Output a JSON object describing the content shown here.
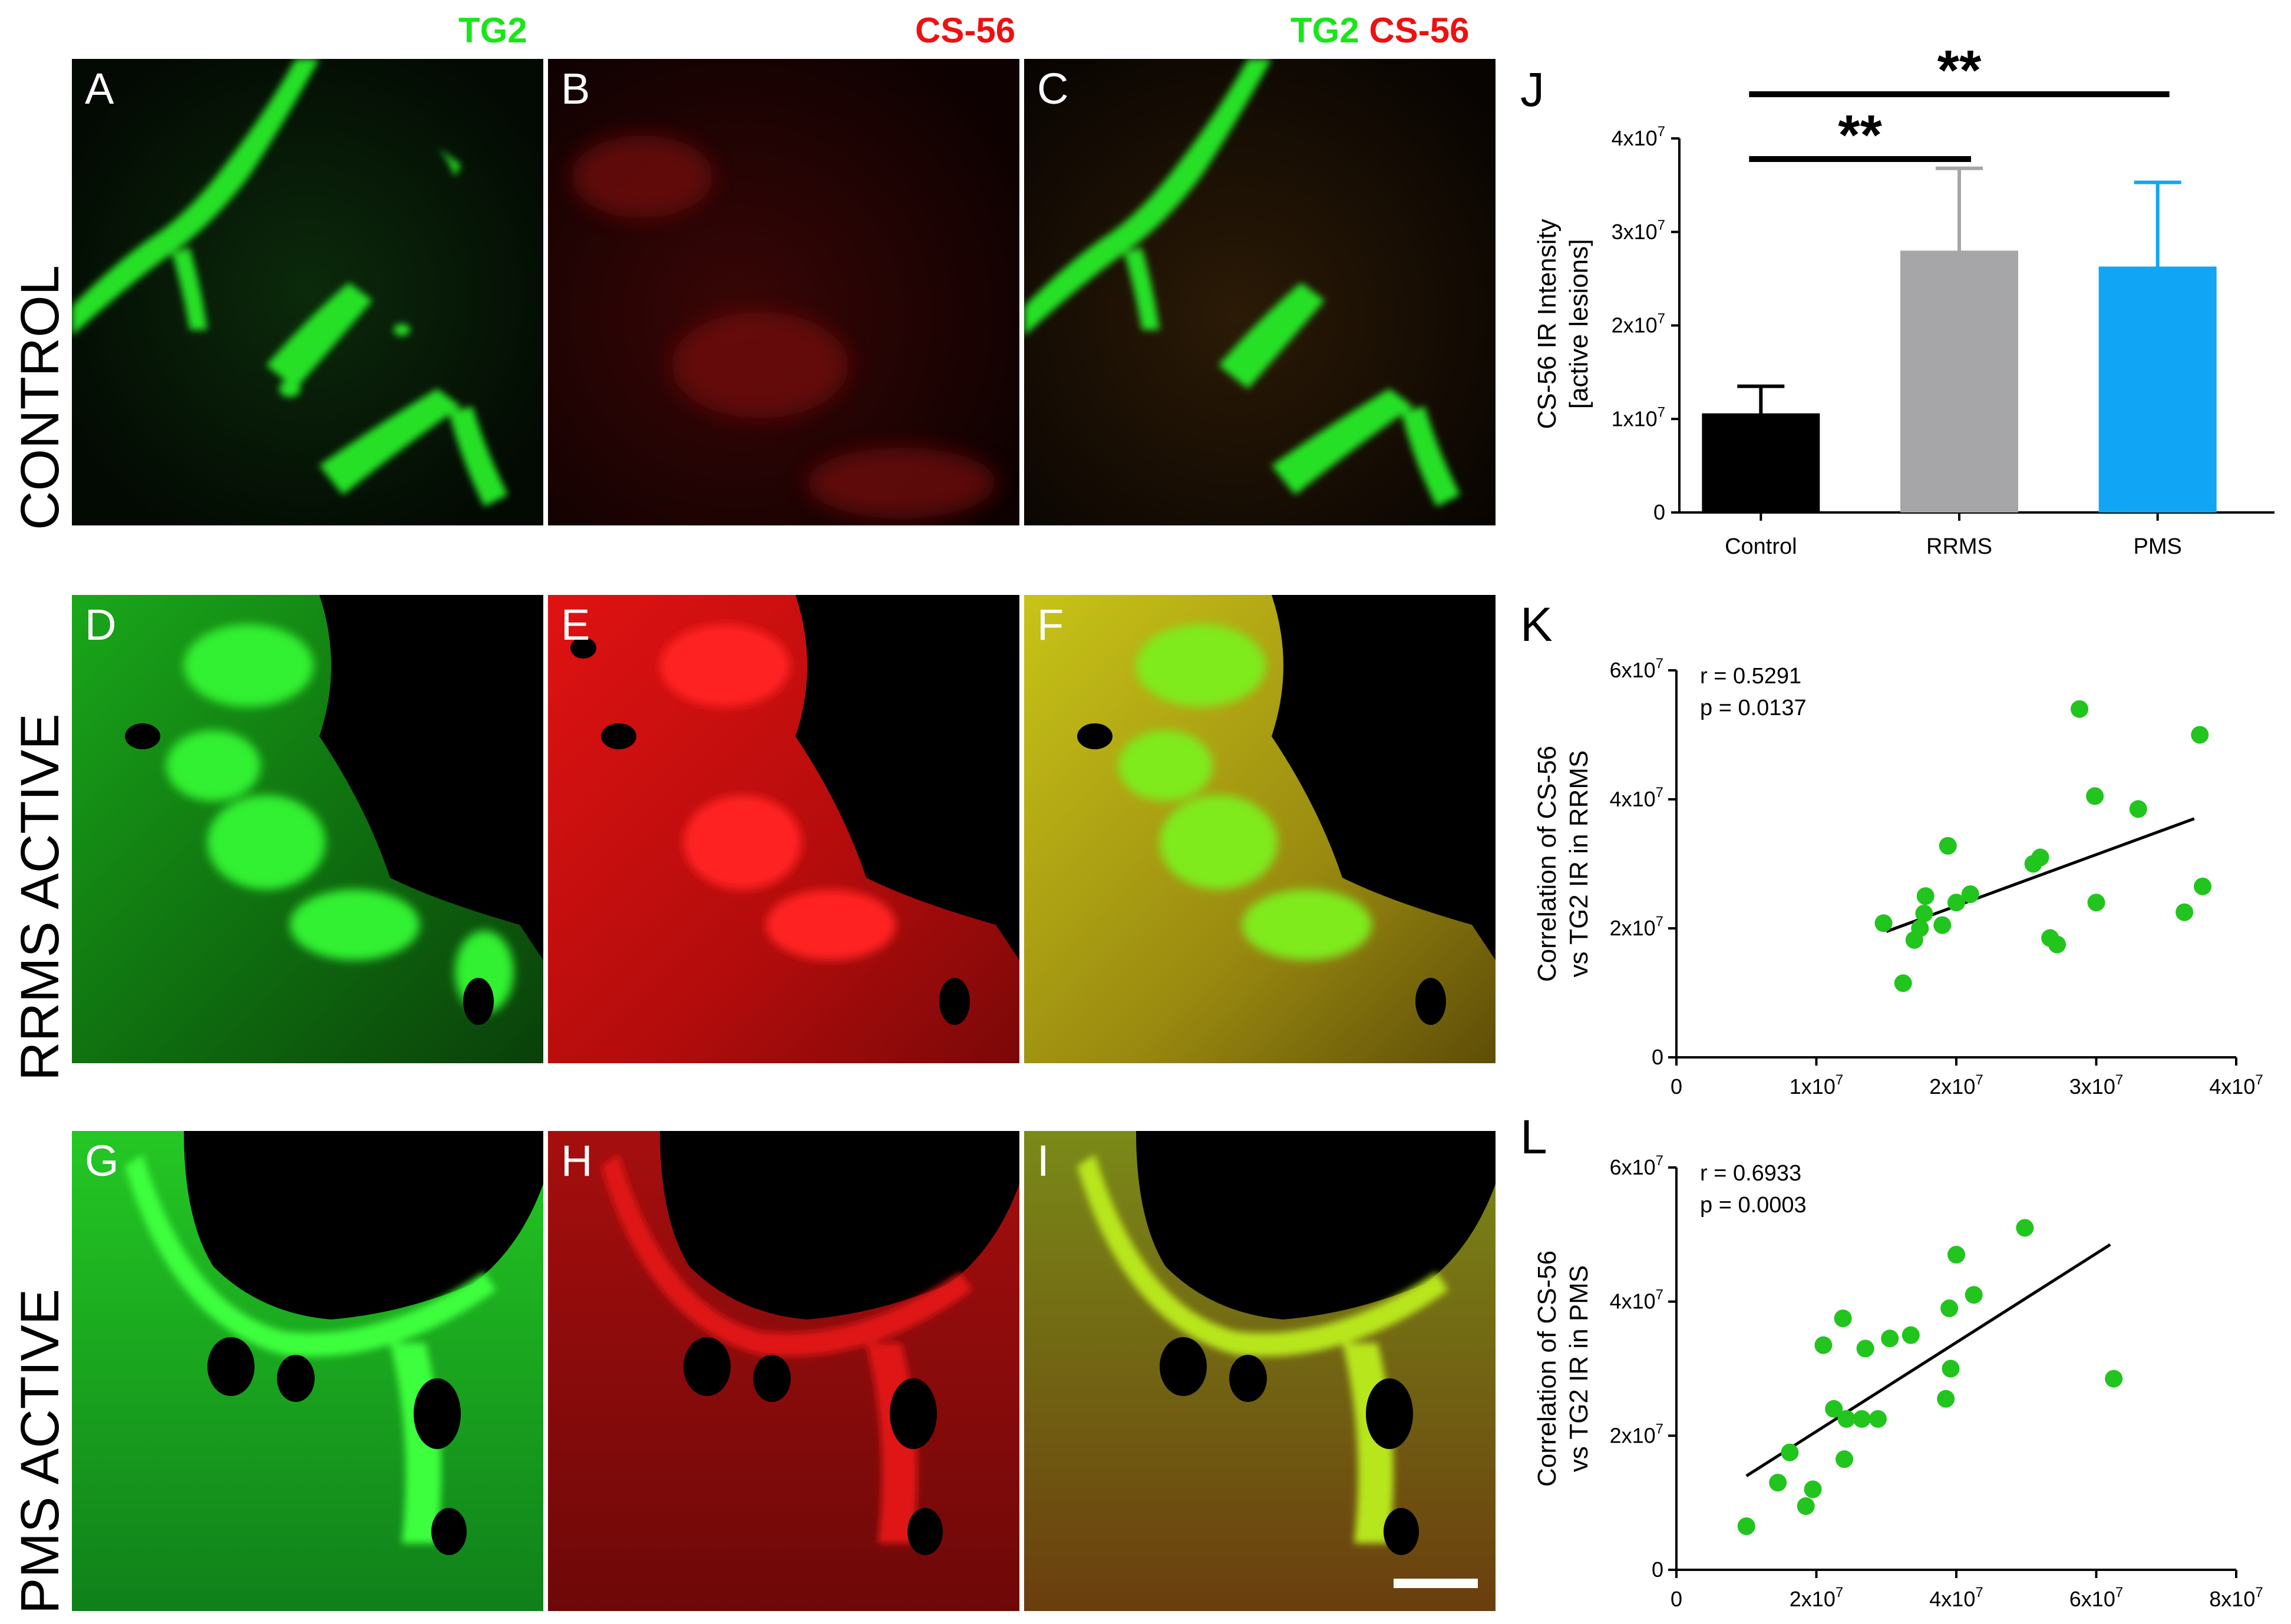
{
  "headers": {
    "col1": "TG2",
    "col2": "CS-56",
    "col3_a": "TG2",
    "col3_b": "CS-56"
  },
  "rows": {
    "control": "CONTROL",
    "rrms": "RRMS ACTIVE",
    "pms": "PMS ACTIVE"
  },
  "panels": {
    "A": "A",
    "B": "B",
    "C": "C",
    "D": "D",
    "E": "E",
    "F": "F",
    "G": "G",
    "H": "H",
    "I": "I"
  },
  "colors": {
    "tg2": "#22dd22",
    "cs56": "#ee1111",
    "merge": "#ccdd22",
    "control_bar": "#000000",
    "rrms_bar": "#a6a6a8",
    "pms_bar": "#10a6f5",
    "scatter_point": "#22c41e"
  },
  "chart_data": [
    {
      "panel": "J",
      "type": "bar",
      "categories": [
        "Control",
        "RRMS",
        "PMS"
      ],
      "values": [
        10600000,
        28000000,
        26300000
      ],
      "errors": [
        2900000,
        8800000,
        9000000
      ],
      "ylabel_line1": "CS-56 IR Intensity",
      "ylabel_line2": "[active lesions]",
      "ylim": [
        0,
        40000000
      ],
      "yticks": [
        {
          "base": "0",
          "exp": ""
        },
        {
          "base": "1x10",
          "exp": "7"
        },
        {
          "base": "2x10",
          "exp": "7"
        },
        {
          "base": "3x10",
          "exp": "7"
        },
        {
          "base": "4x10",
          "exp": "7"
        }
      ],
      "significance": [
        {
          "label": "**",
          "from": "Control",
          "to": "RRMS"
        },
        {
          "label": "**",
          "from": "Control",
          "to": "PMS"
        }
      ]
    },
    {
      "panel": "K",
      "type": "scatter",
      "ylabel_line1": "Correlation of CS-56",
      "ylabel_line2": "vs TG2 IR in RRMS",
      "stat_r": "r = 0.5291",
      "stat_p": "p = 0.0137",
      "xlim": [
        0,
        40000000
      ],
      "ylim": [
        0,
        60000000
      ],
      "xticks": [
        {
          "base": "0",
          "exp": ""
        },
        {
          "base": "1x10",
          "exp": "7"
        },
        {
          "base": "2x10",
          "exp": "7"
        },
        {
          "base": "3x10",
          "exp": "7"
        },
        {
          "base": "4x10",
          "exp": "7"
        }
      ],
      "yticks": [
        {
          "base": "0",
          "exp": ""
        },
        {
          "base": "2x10",
          "exp": "7"
        },
        {
          "base": "4x10",
          "exp": "7"
        },
        {
          "base": "6x10",
          "exp": "7"
        }
      ],
      "points": [
        [
          14800000,
          20800000
        ],
        [
          16200000,
          11500000
        ],
        [
          17000000,
          18200000
        ],
        [
          17400000,
          20000000
        ],
        [
          17700000,
          22300000
        ],
        [
          17800000,
          25000000
        ],
        [
          19000000,
          20500000
        ],
        [
          19400000,
          32800000
        ],
        [
          20000000,
          24000000
        ],
        [
          21000000,
          25300000
        ],
        [
          25500000,
          30000000
        ],
        [
          26000000,
          31000000
        ],
        [
          26700000,
          18500000
        ],
        [
          27200000,
          17500000
        ],
        [
          28800000,
          54000000
        ],
        [
          29900000,
          40500000
        ],
        [
          30000000,
          24000000
        ],
        [
          33000000,
          38500000
        ],
        [
          36300000,
          22500000
        ],
        [
          37400000,
          50000000
        ],
        [
          37600000,
          26500000
        ]
      ],
      "fit": [
        [
          15000000,
          19500000
        ],
        [
          37000000,
          37000000
        ]
      ]
    },
    {
      "panel": "L",
      "type": "scatter",
      "ylabel_line1": "Correlation of CS-56",
      "ylabel_line2": "vs TG2 IR in PMS",
      "stat_r": "r = 0.6933",
      "stat_p": "p = 0.0003",
      "xlim": [
        0,
        80000000
      ],
      "ylim": [
        0,
        60000000
      ],
      "xticks": [
        {
          "base": "0",
          "exp": ""
        },
        {
          "base": "2x10",
          "exp": "7"
        },
        {
          "base": "4x10",
          "exp": "7"
        },
        {
          "base": "6x10",
          "exp": "7"
        },
        {
          "base": "8x10",
          "exp": "7"
        }
      ],
      "yticks": [
        {
          "base": "0",
          "exp": ""
        },
        {
          "base": "2x10",
          "exp": "7"
        },
        {
          "base": "4x10",
          "exp": "7"
        },
        {
          "base": "6x10",
          "exp": "7"
        }
      ],
      "points": [
        [
          10000000,
          6500000
        ],
        [
          14500000,
          13000000
        ],
        [
          16200000,
          17500000
        ],
        [
          18500000,
          9500000
        ],
        [
          19500000,
          12000000
        ],
        [
          21000000,
          33500000
        ],
        [
          22500000,
          24000000
        ],
        [
          23800000,
          37500000
        ],
        [
          24000000,
          16500000
        ],
        [
          24300000,
          22500000
        ],
        [
          26500000,
          22500000
        ],
        [
          27000000,
          33000000
        ],
        [
          28800000,
          22500000
        ],
        [
          30500000,
          34500000
        ],
        [
          33500000,
          35000000
        ],
        [
          38500000,
          25500000
        ],
        [
          39000000,
          39000000
        ],
        [
          39200000,
          30000000
        ],
        [
          40000000,
          47000000
        ],
        [
          42500000,
          41000000
        ],
        [
          49800000,
          51000000
        ],
        [
          62500000,
          28500000
        ]
      ],
      "fit": [
        [
          10000000,
          14000000
        ],
        [
          62000000,
          48500000
        ]
      ]
    }
  ],
  "chart_labels": {
    "J": "J",
    "K": "K",
    "L": "L"
  }
}
